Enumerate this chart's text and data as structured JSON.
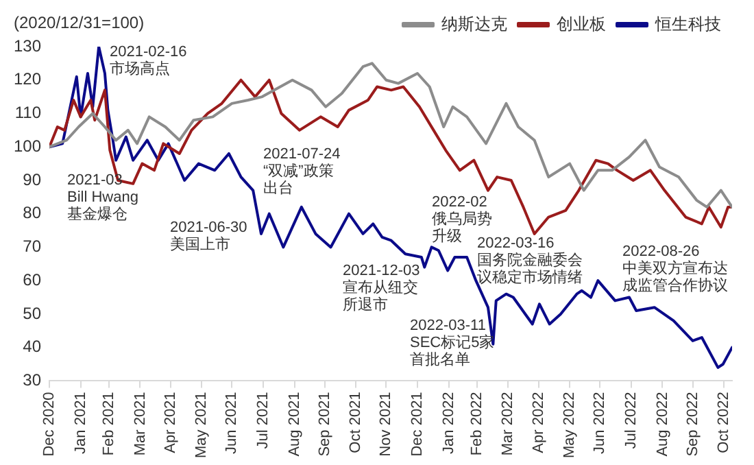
{
  "chart_data": {
    "type": "line",
    "ylabel": "(2020/12/31=100)",
    "legend": "top right",
    "grid": false,
    "marker": "none",
    "line_style": "solid",
    "xlim": [
      "2020-12-31",
      "2022-11-08"
    ],
    "xticks": [
      {
        "value": "2020-12-31",
        "label": "Dec 2020"
      },
      {
        "value": "2021-01-31",
        "label": "Jan 2021"
      },
      {
        "value": "2021-02-28",
        "label": "Feb 2021"
      },
      {
        "value": "2021-03-31",
        "label": "Mar 2021"
      },
      {
        "value": "2021-04-30",
        "label": "Apr 2021"
      },
      {
        "value": "2021-05-31",
        "label": "May 2021"
      },
      {
        "value": "2021-06-30",
        "label": "Jun 2021"
      },
      {
        "value": "2021-07-31",
        "label": "Jul 2021"
      },
      {
        "value": "2021-08-31",
        "label": "Aug 2021"
      },
      {
        "value": "2021-09-30",
        "label": "Sep 2021"
      },
      {
        "value": "2021-10-31",
        "label": "Oct 2021"
      },
      {
        "value": "2021-11-30",
        "label": "Nov 2021"
      },
      {
        "value": "2021-12-31",
        "label": "Dec 2021"
      },
      {
        "value": "2022-01-31",
        "label": "Jan 2022"
      },
      {
        "value": "2022-02-28",
        "label": "Feb 2022"
      },
      {
        "value": "2022-03-31",
        "label": "Mar 2022"
      },
      {
        "value": "2022-04-30",
        "label": "Apr 2022"
      },
      {
        "value": "2022-05-31",
        "label": "May 2022"
      },
      {
        "value": "2022-06-30",
        "label": "Jun 2022"
      },
      {
        "value": "2022-07-31",
        "label": "Jul 2022"
      },
      {
        "value": "2022-08-31",
        "label": "Aug 2022"
      },
      {
        "value": "2022-09-30",
        "label": "Sep 2022"
      },
      {
        "value": "2022-10-31",
        "label": "Oct 2022"
      }
    ],
    "ylim": [
      30,
      130
    ],
    "yticks": [
      30,
      40,
      50,
      60,
      70,
      80,
      90,
      100,
      110,
      120,
      130
    ],
    "series": [
      {
        "name": "纳斯达克",
        "color": "#8c8c8c",
        "x": [
          "2020-12-31",
          "2021-01-17",
          "2021-01-29",
          "2021-02-12",
          "2021-02-24",
          "2021-03-07",
          "2021-03-19",
          "2021-03-28",
          "2021-04-09",
          "2021-04-25",
          "2021-05-09",
          "2021-05-23",
          "2021-06-11",
          "2021-06-30",
          "2021-07-16",
          "2021-07-30",
          "2021-08-29",
          "2021-09-17",
          "2021-10-01",
          "2021-10-17",
          "2021-11-07",
          "2021-11-16",
          "2021-11-30",
          "2021-12-12",
          "2021-12-31",
          "2022-01-12",
          "2022-01-26",
          "2022-02-04",
          "2022-02-18",
          "2022-03-09",
          "2022-03-29",
          "2022-04-10",
          "2022-04-26",
          "2022-05-10",
          "2022-05-31",
          "2022-06-14",
          "2022-06-28",
          "2022-07-12",
          "2022-07-29",
          "2022-08-14",
          "2022-08-28",
          "2022-09-16",
          "2022-10-04",
          "2022-10-14",
          "2022-10-28",
          "2022-11-08"
        ],
        "values": [
          100,
          102,
          106,
          110,
          106,
          102,
          105,
          101,
          109,
          106,
          102,
          108,
          109,
          113,
          114,
          115,
          120,
          117,
          112,
          116,
          124,
          125,
          120,
          119,
          122,
          118,
          106,
          112,
          109,
          101,
          113,
          106,
          102,
          91,
          95,
          87,
          93,
          93,
          97,
          102,
          94,
          91,
          84,
          82,
          87,
          82
        ]
      },
      {
        "name": "创业板",
        "color": "#9b1c1c",
        "x": [
          "2020-12-31",
          "2021-01-08",
          "2021-01-15",
          "2021-01-24",
          "2021-01-31",
          "2021-02-10",
          "2021-02-14",
          "2021-02-24",
          "2021-03-01",
          "2021-03-09",
          "2021-03-24",
          "2021-04-02",
          "2021-04-14",
          "2021-04-23",
          "2021-05-09",
          "2021-05-21",
          "2021-06-06",
          "2021-06-20",
          "2021-07-09",
          "2021-07-23",
          "2021-08-06",
          "2021-08-18",
          "2021-09-05",
          "2021-09-26",
          "2021-10-13",
          "2021-10-24",
          "2021-11-12",
          "2021-11-21",
          "2021-12-05",
          "2021-12-17",
          "2022-01-02",
          "2022-01-16",
          "2022-01-28",
          "2022-02-11",
          "2022-02-25",
          "2022-03-11",
          "2022-03-20",
          "2022-04-03",
          "2022-04-15",
          "2022-04-26",
          "2022-05-10",
          "2022-05-27",
          "2022-06-09",
          "2022-06-26",
          "2022-07-08",
          "2022-07-17",
          "2022-08-02",
          "2022-08-19",
          "2022-09-02",
          "2022-09-23",
          "2022-10-09",
          "2022-10-16",
          "2022-10-28",
          "2022-11-04",
          "2022-11-08"
        ],
        "values": [
          100,
          106,
          105,
          114,
          109,
          114,
          108,
          117,
          99,
          90,
          89,
          95,
          93,
          101,
          98,
          105,
          110,
          113,
          120,
          115,
          120,
          110,
          105,
          109,
          106,
          111,
          114,
          118,
          117,
          118,
          112,
          105,
          99,
          93,
          96,
          87,
          91,
          90,
          82,
          74,
          79,
          81,
          87,
          96,
          95,
          93,
          90,
          93,
          87,
          79,
          77,
          82,
          76,
          82,
          82
        ]
      },
      {
        "name": "恒生科技",
        "color": "#0b0b8a",
        "x": [
          "2020-12-31",
          "2021-01-13",
          "2021-01-27",
          "2021-01-31",
          "2021-02-07",
          "2021-02-12",
          "2021-02-18",
          "2021-02-24",
          "2021-02-27",
          "2021-03-04",
          "2021-03-07",
          "2021-03-17",
          "2021-03-24",
          "2021-04-07",
          "2021-04-18",
          "2021-04-28",
          "2021-05-14",
          "2021-05-28",
          "2021-06-13",
          "2021-06-27",
          "2021-07-09",
          "2021-07-21",
          "2021-07-29",
          "2021-08-06",
          "2021-08-20",
          "2021-09-07",
          "2021-09-21",
          "2021-10-06",
          "2021-10-24",
          "2021-11-07",
          "2021-11-17",
          "2021-11-26",
          "2021-12-05",
          "2021-12-19",
          "2022-01-04",
          "2022-01-07",
          "2022-01-14",
          "2022-01-21",
          "2022-01-30",
          "2022-02-06",
          "2022-02-18",
          "2022-02-27",
          "2022-03-11",
          "2022-03-16",
          "2022-03-19",
          "2022-03-29",
          "2022-04-05",
          "2022-04-24",
          "2022-05-01",
          "2022-05-11",
          "2022-05-22",
          "2022-06-07",
          "2022-06-12",
          "2022-06-21",
          "2022-06-28",
          "2022-07-15",
          "2022-07-29",
          "2022-08-05",
          "2022-08-23",
          "2022-09-11",
          "2022-09-30",
          "2022-10-09",
          "2022-10-25",
          "2022-10-30",
          "2022-11-08"
        ],
        "values": [
          100,
          101,
          121,
          109,
          122,
          112,
          130,
          122,
          111,
          102,
          96,
          103,
          96,
          102,
          96,
          101,
          90,
          95,
          93,
          98,
          91,
          87,
          74,
          80,
          70,
          82,
          74,
          70,
          80,
          74,
          77,
          73,
          72,
          68,
          67,
          64,
          70,
          69,
          63,
          67,
          67,
          60,
          52,
          41,
          54,
          56,
          55,
          47,
          53,
          47,
          50,
          56,
          57,
          55,
          60,
          54,
          55,
          51,
          52,
          48,
          42,
          43,
          34,
          35,
          40
        ]
      }
    ],
    "annotations": [
      "2021-02-16\n市场高点",
      "2021-03\nBill Hwang\n基金爆仓",
      "2021-06-30\n美国上市",
      "2021-07-24\n“双减”政策出台",
      "2021-12-03\n宣布从纽交所退市",
      "2022-02\n俄乌局势升级",
      "2022-03-16\n国务院金融委会议稳定市场情绪",
      "2022-03-11\nSEC标记5家首批名单",
      "2022-08-26\n中美双方宣布达成监管合作协议"
    ]
  }
}
